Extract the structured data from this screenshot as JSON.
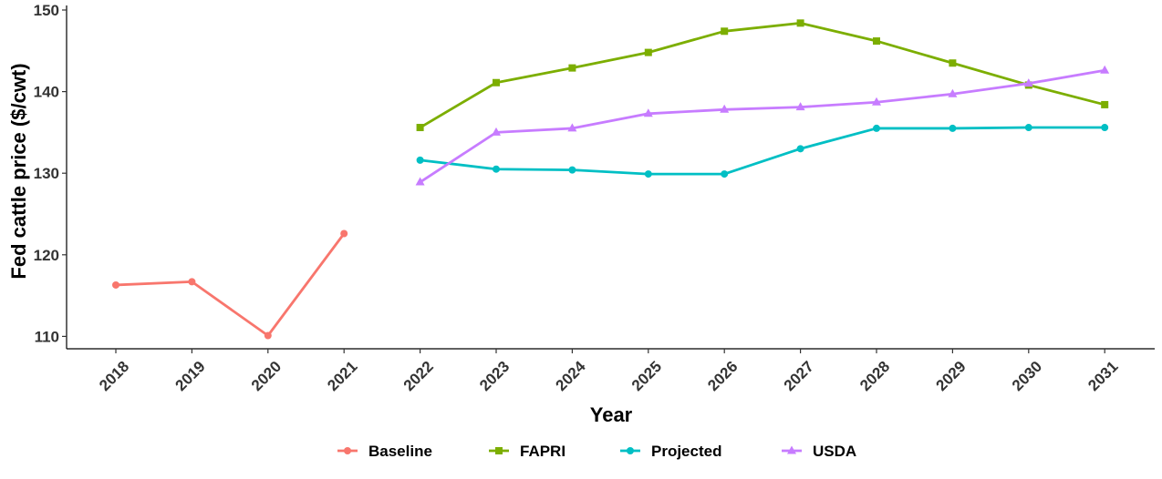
{
  "chart_data": {
    "type": "line",
    "xlabel": "Year",
    "ylabel": "Fed cattle price ($/cwt)",
    "ylim": [
      108.5,
      150
    ],
    "y_ticks": [
      110,
      120,
      130,
      140,
      150
    ],
    "x_ticks": [
      2018,
      2019,
      2020,
      2021,
      2022,
      2023,
      2024,
      2025,
      2026,
      2027,
      2028,
      2029,
      2030,
      2031
    ],
    "grid": false,
    "legend_position": "bottom",
    "series": [
      {
        "name": "Baseline",
        "color": "#F8766D",
        "marker": "circle",
        "x": [
          2018,
          2019,
          2020,
          2021
        ],
        "values": [
          116.3,
          116.7,
          110.1,
          122.6
        ]
      },
      {
        "name": "FAPRI",
        "color": "#7CAE00",
        "marker": "square",
        "x": [
          2022,
          2023,
          2024,
          2025,
          2026,
          2027,
          2028,
          2029,
          2030,
          2031
        ],
        "values": [
          135.6,
          141.1,
          142.9,
          144.8,
          147.4,
          148.4,
          146.2,
          143.5,
          140.8,
          138.4
        ]
      },
      {
        "name": "Projected",
        "color": "#00BFC4",
        "marker": "circle",
        "x": [
          2022,
          2023,
          2024,
          2025,
          2026,
          2027,
          2028,
          2029,
          2030,
          2031
        ],
        "values": [
          131.6,
          130.5,
          130.4,
          129.9,
          129.9,
          133.0,
          135.5,
          135.5,
          135.6,
          135.6
        ]
      },
      {
        "name": "USDA",
        "color": "#C77CFF",
        "marker": "triangle",
        "x": [
          2022,
          2023,
          2024,
          2025,
          2026,
          2027,
          2028,
          2029,
          2030,
          2031
        ],
        "values": [
          128.9,
          135.0,
          135.5,
          137.3,
          137.8,
          138.1,
          138.7,
          139.7,
          141.0,
          142.6
        ]
      }
    ]
  }
}
